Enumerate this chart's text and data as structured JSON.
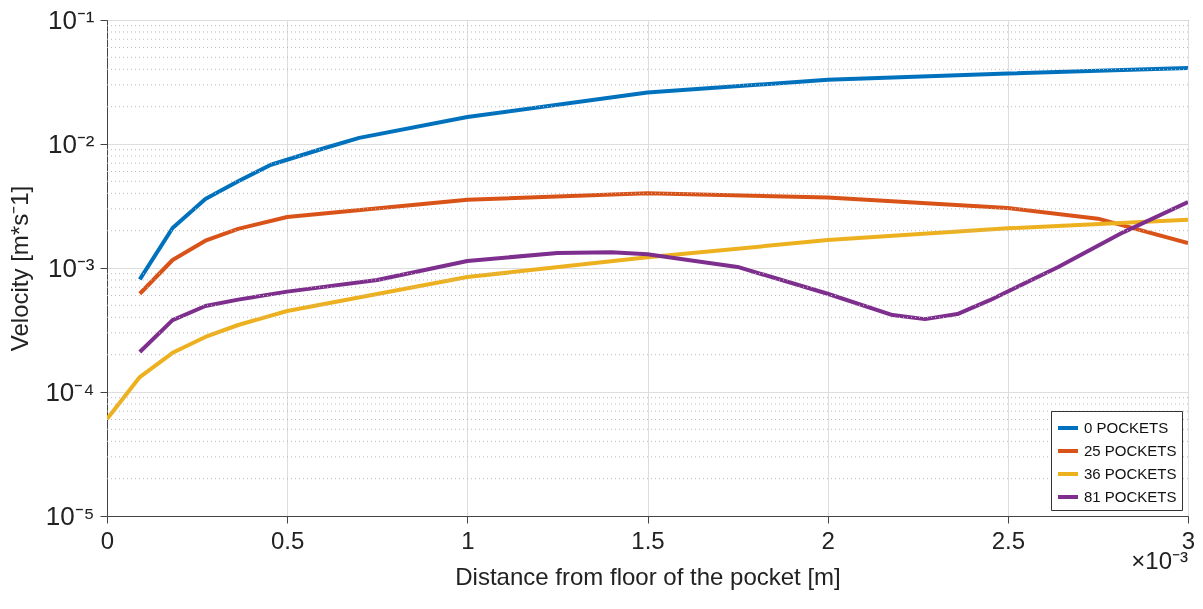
{
  "chart_data": {
    "type": "line",
    "xlabel": "Distance from floor of the pocket [m]",
    "ylabel": "Velocity [m*s⁻1]",
    "annotations": [
      "×10⁻³"
    ],
    "log": "y",
    "grid": true,
    "legend": "bottom right",
    "line_style": "solid",
    "xlim": [
      0,
      3
    ],
    "xticks": [
      0,
      0.5,
      1,
      1.5,
      2,
      2.5,
      3
    ],
    "ylim": [
      1e-05,
      0.1
    ],
    "yticks": [
      {
        "value": 1e-05,
        "label": "10⁻⁵"
      },
      {
        "value": 0.0001,
        "label": "10⁻⁴"
      },
      {
        "value": 0.001,
        "label": "10⁻³"
      },
      {
        "value": 0.01,
        "label": "10⁻²"
      },
      {
        "value": 0.1,
        "label": "10⁻¹"
      }
    ],
    "series": [
      {
        "name": "0 POCKETS",
        "color": "#0072bd",
        "x": [
          0.091,
          0.182,
          0.273,
          0.364,
          0.455,
          0.6,
          0.7,
          1,
          1.5,
          2,
          2.5,
          3
        ],
        "values": [
          0.00081,
          0.0021,
          0.0036,
          0.005,
          0.0068,
          0.0092,
          0.0112,
          0.0165,
          0.026,
          0.033,
          0.037,
          0.041
        ]
      },
      {
        "name": "25 POCKETS",
        "color": "#d95319",
        "x": [
          0.091,
          0.182,
          0.273,
          0.364,
          0.5,
          1,
          1.5,
          2,
          2.5,
          2.75,
          3
        ],
        "values": [
          0.00062,
          0.00116,
          0.00166,
          0.00207,
          0.00258,
          0.00355,
          0.004,
          0.0037,
          0.00305,
          0.0025,
          0.00159
        ]
      },
      {
        "name": "36 POCKETS",
        "color": "#edb120",
        "x": [
          0,
          0.091,
          0.182,
          0.273,
          0.364,
          0.5,
          1,
          1.5,
          2,
          2.5,
          3
        ],
        "values": [
          6.05e-05,
          0.000132,
          0.000207,
          0.000278,
          0.000347,
          0.00045,
          0.000845,
          0.00122,
          0.00168,
          0.00209,
          0.00245
        ]
      },
      {
        "name": "81 POCKETS",
        "color": "#7e2f8e",
        "x": [
          0.091,
          0.182,
          0.273,
          0.364,
          0.5,
          0.75,
          1,
          1.25,
          1.4,
          1.5,
          1.75,
          2,
          2.18,
          2.27,
          2.36,
          2.45,
          2.64,
          2.82,
          3
        ],
        "values": [
          0.00021,
          0.00038,
          0.000494,
          0.000556,
          0.000645,
          0.0008,
          0.00114,
          0.00132,
          0.00134,
          0.00129,
          0.00102,
          0.00062,
          0.000417,
          0.000387,
          0.000425,
          0.00055,
          0.00102,
          0.00194,
          0.0034
        ]
      }
    ]
  }
}
